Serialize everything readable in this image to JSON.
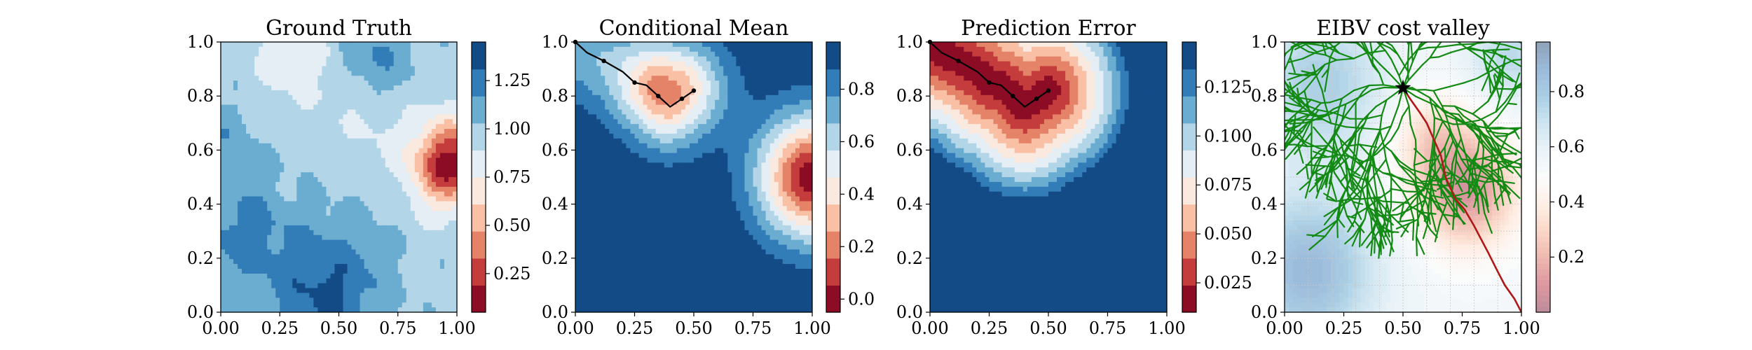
{
  "chart_data": [
    {
      "type": "heatmap",
      "title": "Ground Truth",
      "xlim": [
        0,
        1
      ],
      "ylim": [
        0,
        1
      ],
      "xticks": [
        "0.00",
        "0.25",
        "0.50",
        "0.75",
        "1.00"
      ],
      "yticks": [
        "0.0",
        "0.2",
        "0.4",
        "0.6",
        "0.8",
        "1.0"
      ],
      "colormap": "RdBu",
      "colorbar": {
        "range": [
          0.05,
          1.45
        ],
        "ticks": [
          "0.25",
          "0.50",
          "0.75",
          "1.00",
          "1.25"
        ],
        "tick_values": [
          0.25,
          0.5,
          0.75,
          1.0,
          1.25
        ],
        "levels": 10
      },
      "features": [
        {
          "kind": "hotspot",
          "x": 0.95,
          "y": 0.55,
          "peak": 0.1,
          "desc": "red high-intensity region near right edge"
        },
        {
          "kind": "light",
          "x": 0.32,
          "y": 0.92,
          "value": 0.68
        },
        {
          "kind": "dark",
          "x": 0.45,
          "y": 0.05,
          "value": 1.4
        }
      ],
      "grid": false
    },
    {
      "type": "heatmap",
      "title": "Conditional Mean",
      "xlim": [
        0,
        1
      ],
      "ylim": [
        0,
        1
      ],
      "xticks": [
        "0.00",
        "0.25",
        "0.50",
        "0.75",
        "1.00"
      ],
      "yticks": [
        "0.0",
        "0.2",
        "0.4",
        "0.6",
        "0.8",
        "1.0"
      ],
      "colormap": "RdBu",
      "colorbar": {
        "range": [
          -0.05,
          0.98
        ],
        "ticks": [
          "0.0",
          "0.2",
          "0.4",
          "0.6",
          "0.8"
        ],
        "tick_values": [
          0.0,
          0.2,
          0.4,
          0.6,
          0.8
        ],
        "levels": 10
      },
      "path": {
        "x": [
          0.0,
          0.05,
          0.12,
          0.2,
          0.25,
          0.3,
          0.35,
          0.4,
          0.45,
          0.5
        ],
        "y": [
          1.0,
          0.96,
          0.93,
          0.89,
          0.85,
          0.84,
          0.8,
          0.76,
          0.79,
          0.82
        ]
      },
      "grid": false
    },
    {
      "type": "heatmap",
      "title": "Prediction Error",
      "xlim": [
        0,
        1
      ],
      "ylim": [
        0,
        1
      ],
      "xticks": [
        "0.00",
        "0.25",
        "0.50",
        "0.75",
        "1.00"
      ],
      "yticks": [
        "0.0",
        "0.2",
        "0.4",
        "0.6",
        "0.8",
        "1.0"
      ],
      "colormap": "RdBu",
      "colorbar": {
        "range": [
          0.01,
          0.148
        ],
        "ticks": [
          "0.025",
          "0.050",
          "0.075",
          "0.100",
          "0.125"
        ],
        "tick_values": [
          0.025,
          0.05,
          0.075,
          0.1,
          0.125
        ],
        "levels": 10
      },
      "path": {
        "x": [
          0.0,
          0.05,
          0.12,
          0.2,
          0.25,
          0.3,
          0.35,
          0.4,
          0.45,
          0.5
        ],
        "y": [
          1.0,
          0.96,
          0.93,
          0.89,
          0.85,
          0.84,
          0.8,
          0.76,
          0.79,
          0.82
        ]
      },
      "grid": false
    },
    {
      "type": "heatmap",
      "title": "EIBV cost valley",
      "xlim": [
        0,
        1
      ],
      "ylim": [
        0,
        1
      ],
      "xticks": [
        "0.00",
        "0.25",
        "0.50",
        "0.75",
        "1.00"
      ],
      "yticks": [
        "0.0",
        "0.2",
        "0.4",
        "0.6",
        "0.8",
        "1.0"
      ],
      "colormap": "RdBu (faint)",
      "colorbar": {
        "range": [
          0.0,
          0.98
        ],
        "ticks": [
          "0.2",
          "0.4",
          "0.6",
          "0.8"
        ],
        "tick_values": [
          0.2,
          0.4,
          0.6,
          0.8
        ],
        "levels": 50
      },
      "tree_root": {
        "x": 0.5,
        "y": 0.83,
        "marker": "star"
      },
      "tree_color": "#138a13",
      "best_path_color": "#b01818",
      "best_path": {
        "x": [
          0.5,
          0.53,
          0.57,
          0.6,
          0.63,
          0.66,
          0.68,
          0.72,
          0.76,
          0.8,
          0.83,
          0.86,
          0.9,
          0.93,
          0.97,
          1.0
        ],
        "y": [
          0.83,
          0.79,
          0.74,
          0.7,
          0.64,
          0.58,
          0.5,
          0.42,
          0.38,
          0.32,
          0.27,
          0.22,
          0.15,
          0.1,
          0.05,
          0.0
        ]
      },
      "grid": true
    }
  ]
}
